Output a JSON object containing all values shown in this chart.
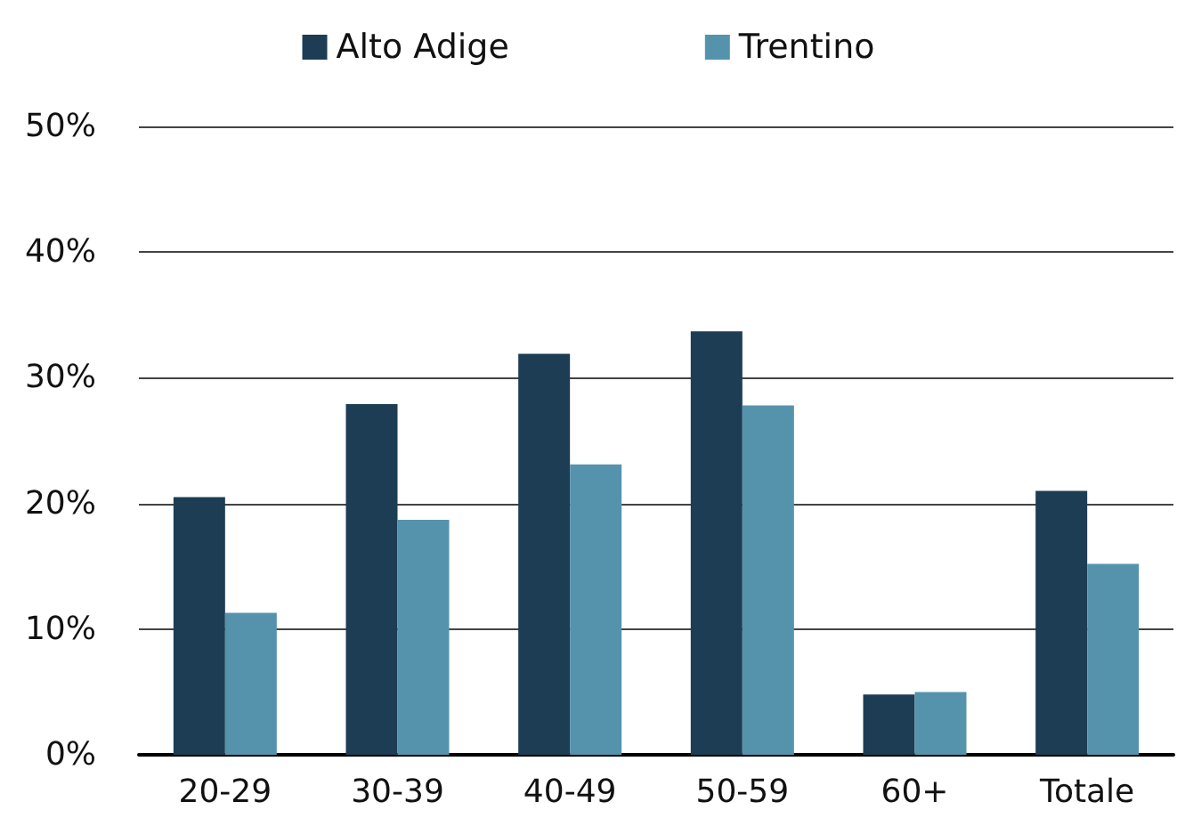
{
  "chart_data": {
    "type": "bar",
    "categories": [
      "20-29",
      "30-39",
      "40-49",
      "50-59",
      "60+",
      "Totale"
    ],
    "series": [
      {
        "name": "Alto Adige",
        "color": "#1c3d54",
        "values": [
          20.5,
          27.9,
          31.9,
          33.7,
          4.8,
          21.0
        ]
      },
      {
        "name": "Trentino",
        "color": "#5593ad",
        "values": [
          11.3,
          18.7,
          23.1,
          27.8,
          5.0,
          15.2
        ]
      }
    ],
    "ylim": [
      0,
      50
    ],
    "yticks": [
      {
        "value": 0,
        "label": "0%"
      },
      {
        "value": 10,
        "label": "10%"
      },
      {
        "value": 20,
        "label": "20%"
      },
      {
        "value": 30,
        "label": "30%"
      },
      {
        "value": 40,
        "label": "40%"
      },
      {
        "value": 50,
        "label": "50%"
      }
    ],
    "grid": "y",
    "legend": "top"
  }
}
